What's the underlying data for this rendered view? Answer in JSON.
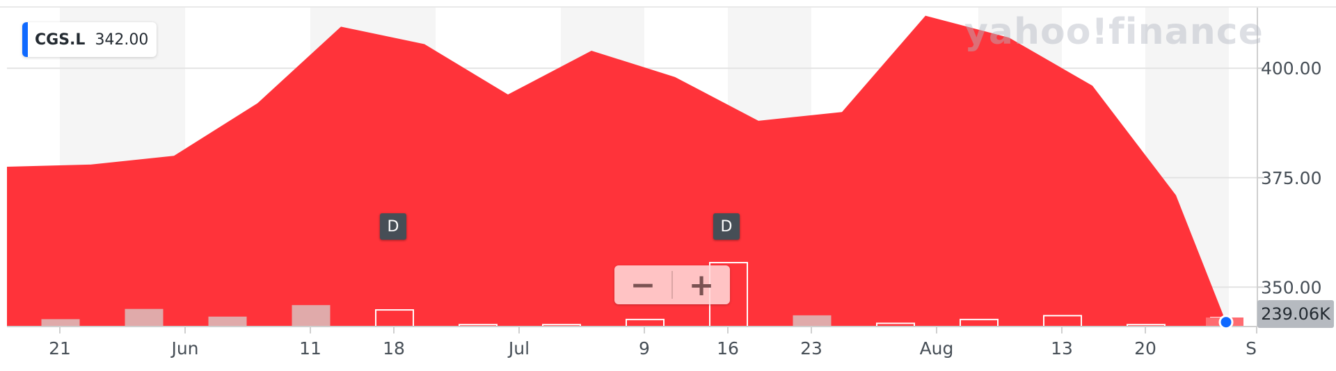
{
  "ticker": {
    "symbol": "CGS.L",
    "value": "342.00"
  },
  "watermark": "yahoo!finance",
  "volume_badge": "239.06K",
  "dividend_marker": "D",
  "zoom": {
    "minus": "−",
    "plus": "+"
  },
  "colors": {
    "area": "#ff333a",
    "band": "#f5f5f5",
    "accent": "#0f69ff",
    "vol_fill": "#e0aaaa",
    "vol_outline": "#ffffff",
    "last_point": "#0f69ff"
  },
  "chart_data": {
    "type": "area",
    "ylim": [
      341,
      414
    ],
    "y_ticks": [
      350,
      375,
      400
    ],
    "y_tick_labels": [
      "350.00",
      "375.00",
      "400.00"
    ],
    "x_tick_labels": [
      "21",
      "Jun",
      "11",
      "18",
      "Jul",
      "9",
      "16",
      "23",
      "Aug",
      "13",
      "20",
      "S"
    ],
    "series": [
      {
        "values": [
          377.5,
          378,
          380,
          392,
          409.5,
          405.5,
          394,
          404,
          398,
          388,
          390,
          412,
          407,
          396,
          371,
          342
        ]
      }
    ],
    "volume_bars": [
      {
        "style": "filled",
        "value": 0.11
      },
      {
        "style": "filled",
        "value": 0.27
      },
      {
        "style": "filled",
        "value": 0.15
      },
      {
        "style": "filled",
        "value": 0.33
      },
      {
        "style": "outline",
        "value": 0.26
      },
      {
        "style": "outline",
        "value": 0.03
      },
      {
        "style": "outline",
        "value": 0.03
      },
      {
        "style": "outline",
        "value": 0.11
      },
      {
        "style": "outline",
        "value": 1.0
      },
      {
        "style": "filled",
        "value": 0.17
      },
      {
        "style": "outline",
        "value": 0.05
      },
      {
        "style": "outline",
        "value": 0.11
      },
      {
        "style": "outline",
        "value": 0.17
      },
      {
        "style": "outline",
        "value": 0.03
      },
      {
        "style": "outline",
        "value": 0.14
      }
    ],
    "dividends": [
      "18",
      "16"
    ],
    "grid": true
  }
}
